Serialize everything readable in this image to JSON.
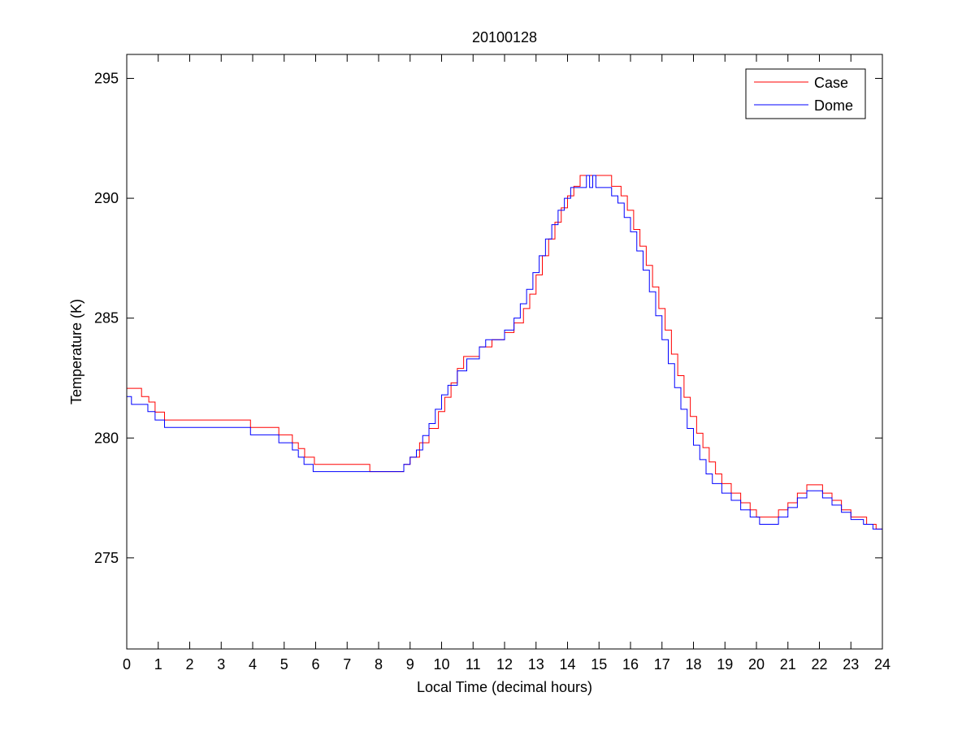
{
  "chart_data": {
    "type": "line",
    "title": "20100128",
    "xlabel": "Local Time (decimal hours)",
    "ylabel": "Temperature (K)",
    "xlim": [
      0,
      24
    ],
    "ylim": [
      271.2,
      296
    ],
    "xticks": [
      0,
      1,
      2,
      3,
      4,
      5,
      6,
      7,
      8,
      9,
      10,
      11,
      12,
      13,
      14,
      15,
      16,
      17,
      18,
      19,
      20,
      21,
      22,
      23,
      24
    ],
    "yticks": [
      275,
      280,
      285,
      290,
      295
    ],
    "grid": false,
    "legend_position": "top-right",
    "series": [
      {
        "name": "Case",
        "color": "#ff0000",
        "points": [
          [
            0,
            282.07
          ],
          [
            0.47,
            281.73
          ],
          [
            0.7,
            281.5
          ],
          [
            0.9,
            281.08
          ],
          [
            1.2,
            280.75
          ],
          [
            3.93,
            280.44
          ],
          [
            4.83,
            280.13
          ],
          [
            5.26,
            279.8
          ],
          [
            5.45,
            279.56
          ],
          [
            5.65,
            279.2
          ],
          [
            5.96,
            278.9
          ],
          [
            7.72,
            278.6
          ],
          [
            8.8,
            278.9
          ],
          [
            9.0,
            279.2
          ],
          [
            9.3,
            279.8
          ],
          [
            9.6,
            280.4
          ],
          [
            9.9,
            281.1
          ],
          [
            10.1,
            281.7
          ],
          [
            10.3,
            282.3
          ],
          [
            10.5,
            282.9
          ],
          [
            10.7,
            283.4
          ],
          [
            11.2,
            283.8
          ],
          [
            11.6,
            284.1
          ],
          [
            12.0,
            284.4
          ],
          [
            12.3,
            284.8
          ],
          [
            12.6,
            285.4
          ],
          [
            12.8,
            286.0
          ],
          [
            13.0,
            286.8
          ],
          [
            13.2,
            287.6
          ],
          [
            13.4,
            288.3
          ],
          [
            13.6,
            289.0
          ],
          [
            13.8,
            289.6
          ],
          [
            14.0,
            290.1
          ],
          [
            14.2,
            290.5
          ],
          [
            14.4,
            290.95
          ],
          [
            15.4,
            290.5
          ],
          [
            15.7,
            290.1
          ],
          [
            15.9,
            289.5
          ],
          [
            16.1,
            288.7
          ],
          [
            16.3,
            288.0
          ],
          [
            16.5,
            287.2
          ],
          [
            16.7,
            286.3
          ],
          [
            16.9,
            285.4
          ],
          [
            17.1,
            284.5
          ],
          [
            17.3,
            283.5
          ],
          [
            17.5,
            282.6
          ],
          [
            17.7,
            281.7
          ],
          [
            17.9,
            280.9
          ],
          [
            18.1,
            280.2
          ],
          [
            18.3,
            279.6
          ],
          [
            18.5,
            279.0
          ],
          [
            18.7,
            278.5
          ],
          [
            18.9,
            278.1
          ],
          [
            19.2,
            277.7
          ],
          [
            19.5,
            277.3
          ],
          [
            19.8,
            277.0
          ],
          [
            20.0,
            276.7
          ],
          [
            20.7,
            277.0
          ],
          [
            21.0,
            277.3
          ],
          [
            21.3,
            277.7
          ],
          [
            21.6,
            278.05
          ],
          [
            22.1,
            277.7
          ],
          [
            22.4,
            277.4
          ],
          [
            22.7,
            277.0
          ],
          [
            23.0,
            276.7
          ],
          [
            23.5,
            276.4
          ],
          [
            23.8,
            276.2
          ],
          [
            24,
            276.2
          ]
        ]
      },
      {
        "name": "Dome",
        "color": "#0000ff",
        "points": [
          [
            0,
            281.73
          ],
          [
            0.15,
            281.4
          ],
          [
            0.67,
            281.1
          ],
          [
            0.9,
            280.75
          ],
          [
            1.2,
            280.44
          ],
          [
            3.93,
            280.13
          ],
          [
            4.83,
            279.8
          ],
          [
            5.26,
            279.5
          ],
          [
            5.45,
            279.2
          ],
          [
            5.63,
            278.9
          ],
          [
            5.92,
            278.6
          ],
          [
            8.8,
            278.9
          ],
          [
            9.0,
            279.2
          ],
          [
            9.2,
            279.5
          ],
          [
            9.4,
            280.1
          ],
          [
            9.6,
            280.6
          ],
          [
            9.8,
            281.2
          ],
          [
            10.0,
            281.8
          ],
          [
            10.2,
            282.2
          ],
          [
            10.5,
            282.8
          ],
          [
            10.8,
            283.3
          ],
          [
            11.2,
            283.8
          ],
          [
            11.4,
            284.1
          ],
          [
            12.0,
            284.5
          ],
          [
            12.3,
            285.0
          ],
          [
            12.5,
            285.6
          ],
          [
            12.7,
            286.2
          ],
          [
            12.9,
            286.9
          ],
          [
            13.1,
            287.6
          ],
          [
            13.3,
            288.3
          ],
          [
            13.5,
            288.9
          ],
          [
            13.7,
            289.5
          ],
          [
            13.9,
            290.0
          ],
          [
            14.1,
            290.45
          ],
          [
            14.6,
            290.95
          ],
          [
            14.7,
            290.45
          ],
          [
            14.8,
            290.95
          ],
          [
            14.9,
            290.45
          ],
          [
            15.4,
            290.1
          ],
          [
            15.6,
            289.8
          ],
          [
            15.8,
            289.2
          ],
          [
            16.0,
            288.6
          ],
          [
            16.2,
            287.8
          ],
          [
            16.4,
            287.0
          ],
          [
            16.6,
            286.1
          ],
          [
            16.8,
            285.1
          ],
          [
            17.0,
            284.1
          ],
          [
            17.2,
            283.1
          ],
          [
            17.4,
            282.1
          ],
          [
            17.6,
            281.2
          ],
          [
            17.8,
            280.4
          ],
          [
            18.0,
            279.7
          ],
          [
            18.2,
            279.1
          ],
          [
            18.4,
            278.5
          ],
          [
            18.6,
            278.1
          ],
          [
            18.9,
            277.7
          ],
          [
            19.2,
            277.4
          ],
          [
            19.5,
            277.0
          ],
          [
            19.8,
            276.7
          ],
          [
            20.1,
            276.4
          ],
          [
            20.7,
            276.7
          ],
          [
            21.0,
            277.1
          ],
          [
            21.3,
            277.5
          ],
          [
            21.6,
            277.8
          ],
          [
            22.1,
            277.5
          ],
          [
            22.4,
            277.2
          ],
          [
            22.7,
            276.9
          ],
          [
            23.0,
            276.6
          ],
          [
            23.4,
            276.4
          ],
          [
            23.7,
            276.2
          ],
          [
            24,
            276.2
          ]
        ]
      }
    ]
  }
}
